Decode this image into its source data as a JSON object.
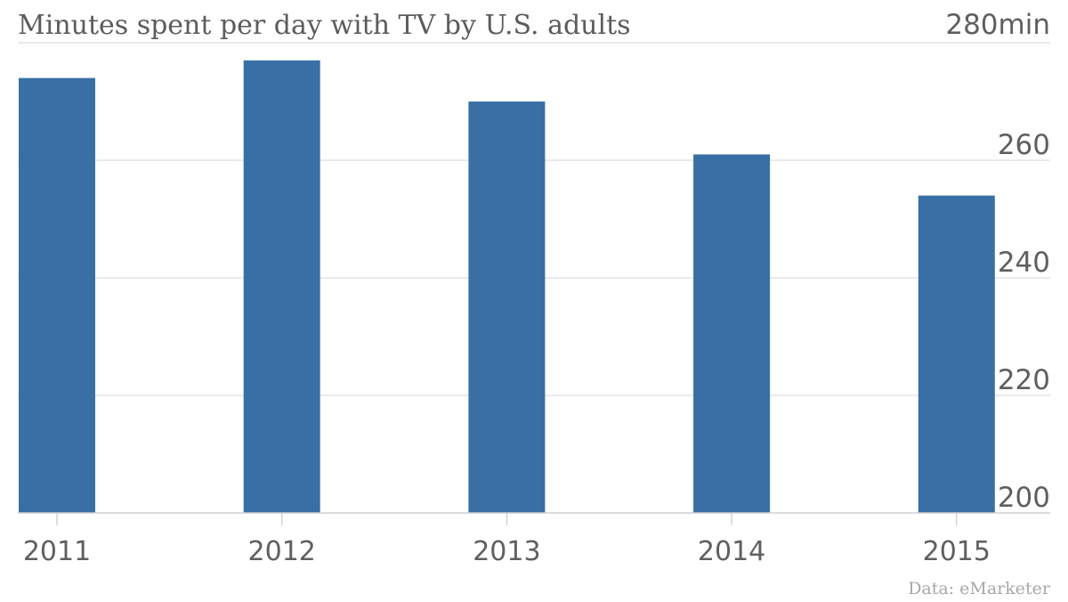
{
  "chart_data": {
    "type": "bar",
    "title": "Minutes spent per day with TV by U.S. adults",
    "source": "Data: eMarketer",
    "categories": [
      "2011",
      "2012",
      "2013",
      "2014",
      "2015"
    ],
    "values": [
      274,
      277,
      270,
      261,
      254
    ],
    "ylim": [
      200,
      280
    ],
    "yticks": [
      200,
      220,
      240,
      260,
      280
    ],
    "ytick_labels": [
      "200",
      "220",
      "240",
      "260",
      "280min"
    ],
    "xlabel": "",
    "ylabel": "",
    "grid": true,
    "y_axis_position": "right",
    "bar_color": "#3870a5"
  }
}
